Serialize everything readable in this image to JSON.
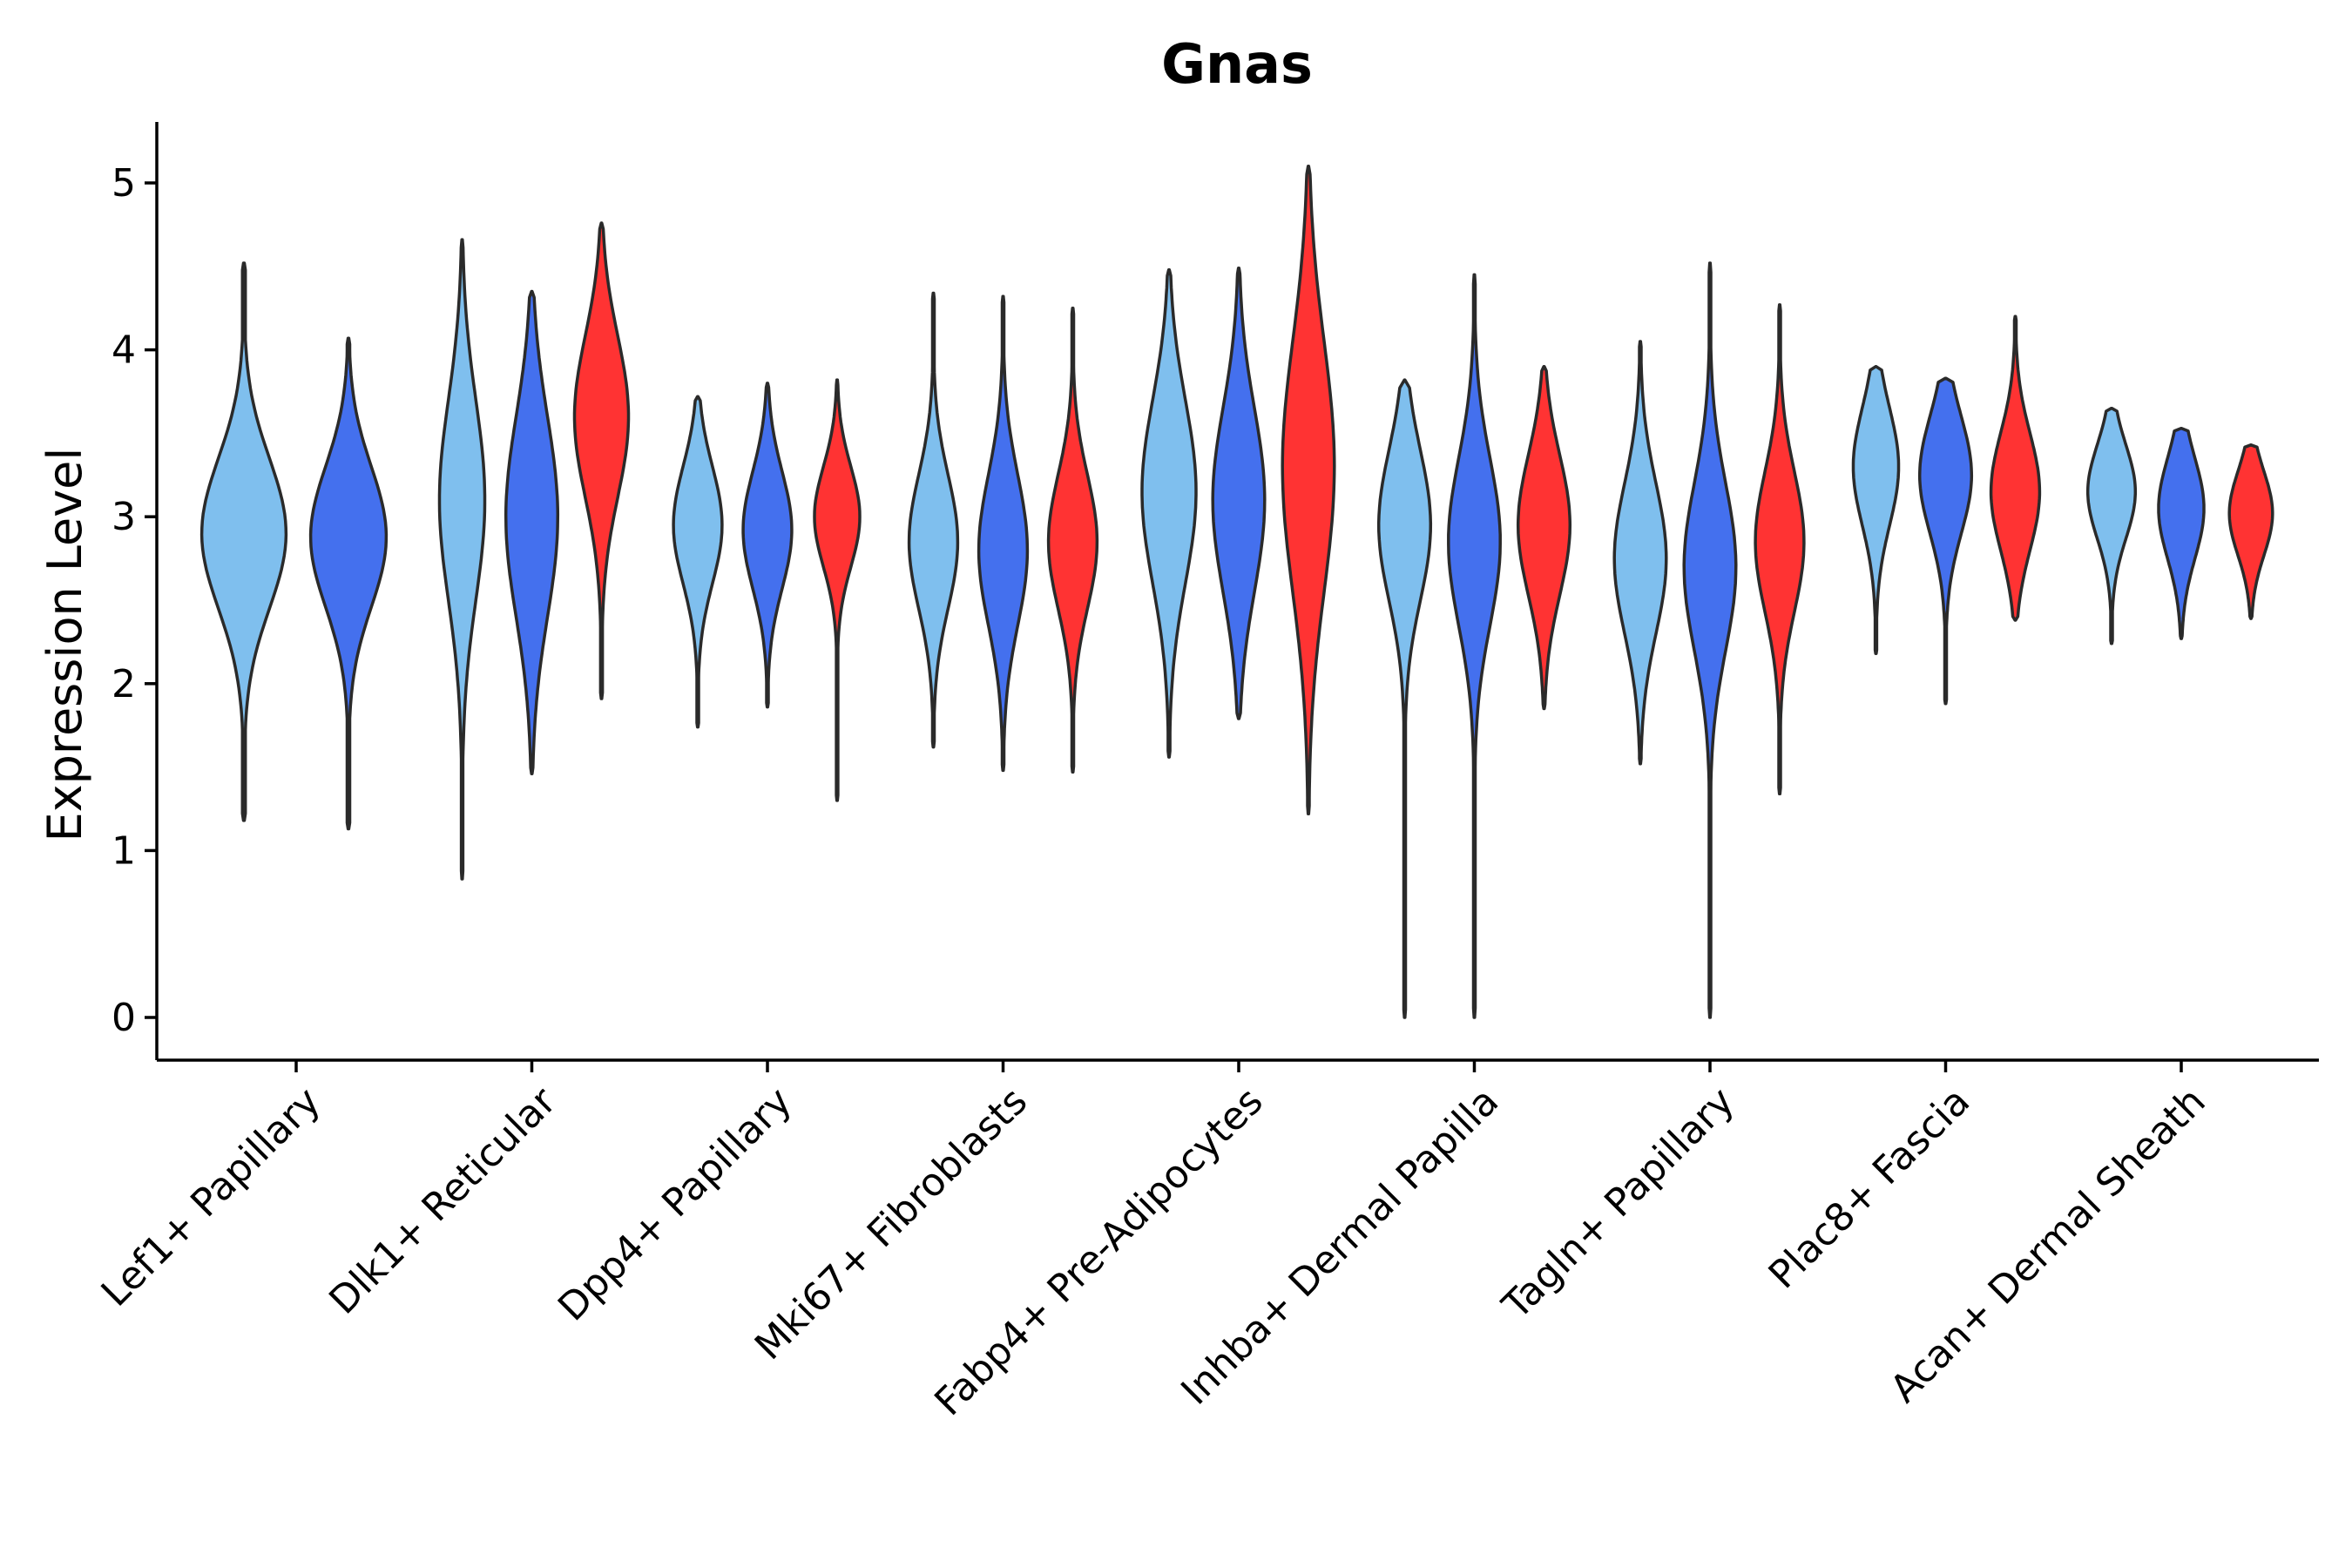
{
  "chart_data": {
    "type": "violin",
    "title": "Gnas",
    "xlabel": "",
    "ylabel": "Expression Level",
    "ylim": [
      -0.25,
      5.35
    ],
    "yticks": [
      0,
      1,
      2,
      3,
      4,
      5
    ],
    "categories": [
      "Lef1+ Papillary",
      "Dlk1+ Reticular",
      "Dpp4+ Papillary",
      "Mki67+ Fibroblasts",
      "Fabp4+ Pre-Adipocytes",
      "Inhba+ Dermal Papilla",
      "Tagln+ Papillary",
      "Plac8+ Fascia",
      "Acan+ Dermal Sheath"
    ],
    "series_colors": [
      "#7fbfee",
      "#4470ee",
      "#ff3333"
    ],
    "groups": [
      {
        "category": "Lef1+ Papillary",
        "violins": [
          {
            "min": 1.18,
            "max": 4.52,
            "median": 2.9,
            "spread": 0.45,
            "width": 0.78,
            "color": "#7fbfee"
          },
          {
            "min": 1.13,
            "max": 4.07,
            "median": 2.88,
            "spread": 0.42,
            "width": 0.7,
            "color": "#4470ee"
          }
        ]
      },
      {
        "category": "Dlk1+ Reticular",
        "violins": [
          {
            "min": 0.83,
            "max": 4.66,
            "median": 3.1,
            "spread": 0.6,
            "width": 0.42,
            "color": "#7fbfee"
          },
          {
            "min": 1.46,
            "max": 4.35,
            "median": 3.0,
            "spread": 0.6,
            "width": 0.48,
            "color": "#4470ee"
          },
          {
            "min": 1.91,
            "max": 4.76,
            "median": 3.6,
            "spread": 0.48,
            "width": 0.5,
            "color": "#ff3333"
          }
        ]
      },
      {
        "category": "Dpp4+ Papillary",
        "violins": [
          {
            "min": 1.74,
            "max": 3.72,
            "median": 2.95,
            "spread": 0.35,
            "width": 0.45,
            "color": "#7fbfee"
          },
          {
            "min": 1.86,
            "max": 3.8,
            "median": 2.92,
            "spread": 0.35,
            "width": 0.45,
            "color": "#4470ee"
          },
          {
            "min": 1.3,
            "max": 3.82,
            "median": 3.0,
            "spread": 0.3,
            "width": 0.42,
            "color": "#ff3333"
          }
        ]
      },
      {
        "category": "Mki67+ Fibroblasts",
        "violins": [
          {
            "min": 1.62,
            "max": 4.34,
            "median": 2.85,
            "spread": 0.4,
            "width": 0.45,
            "color": "#7fbfee"
          },
          {
            "min": 1.48,
            "max": 4.32,
            "median": 2.8,
            "spread": 0.45,
            "width": 0.45,
            "color": "#4470ee"
          },
          {
            "min": 1.47,
            "max": 4.25,
            "median": 2.85,
            "spread": 0.4,
            "width": 0.45,
            "color": "#ff3333"
          }
        ]
      },
      {
        "category": "Fabp4+ Pre-Adipocytes",
        "violins": [
          {
            "min": 1.56,
            "max": 4.48,
            "median": 3.15,
            "spread": 0.55,
            "width": 0.5,
            "color": "#7fbfee"
          },
          {
            "min": 1.79,
            "max": 4.49,
            "median": 3.1,
            "spread": 0.55,
            "width": 0.48,
            "color": "#4470ee"
          },
          {
            "min": 1.22,
            "max": 5.1,
            "median": 3.3,
            "spread": 0.75,
            "width": 0.48,
            "color": "#ff3333"
          }
        ]
      },
      {
        "category": "Inhba+ Dermal Papilla",
        "violins": [
          {
            "min": 0.0,
            "max": 3.82,
            "median": 2.95,
            "spread": 0.45,
            "width": 0.48,
            "color": "#7fbfee"
          },
          {
            "min": 0.0,
            "max": 4.45,
            "median": 2.85,
            "spread": 0.5,
            "width": 0.48,
            "color": "#4470ee"
          },
          {
            "min": 1.85,
            "max": 3.9,
            "median": 2.95,
            "spread": 0.42,
            "width": 0.48,
            "color": "#ff3333"
          }
        ]
      },
      {
        "category": "Tagln+ Papillary",
        "violins": [
          {
            "min": 1.52,
            "max": 4.05,
            "median": 2.75,
            "spread": 0.45,
            "width": 0.48,
            "color": "#7fbfee"
          },
          {
            "min": 0.0,
            "max": 4.52,
            "median": 2.7,
            "spread": 0.5,
            "width": 0.48,
            "color": "#4470ee"
          },
          {
            "min": 1.34,
            "max": 4.27,
            "median": 2.85,
            "spread": 0.42,
            "width": 0.45,
            "color": "#ff3333"
          }
        ]
      },
      {
        "category": "Plac8+ Fascia",
        "violins": [
          {
            "min": 2.18,
            "max": 3.9,
            "median": 3.3,
            "spread": 0.35,
            "width": 0.42,
            "color": "#7fbfee"
          },
          {
            "min": 1.88,
            "max": 3.83,
            "median": 3.25,
            "spread": 0.35,
            "width": 0.48,
            "color": "#4470ee"
          },
          {
            "min": 2.38,
            "max": 4.2,
            "median": 3.15,
            "spread": 0.35,
            "width": 0.45,
            "color": "#ff3333"
          }
        ]
      },
      {
        "category": "Acan+ Dermal Sheath",
        "violins": [
          {
            "min": 2.24,
            "max": 3.65,
            "median": 3.15,
            "spread": 0.28,
            "width": 0.44,
            "color": "#7fbfee"
          },
          {
            "min": 2.27,
            "max": 3.53,
            "median": 3.05,
            "spread": 0.3,
            "width": 0.42,
            "color": "#4470ee"
          },
          {
            "min": 2.39,
            "max": 3.43,
            "median": 3.02,
            "spread": 0.25,
            "width": 0.4,
            "color": "#ff3333"
          }
        ]
      }
    ]
  }
}
